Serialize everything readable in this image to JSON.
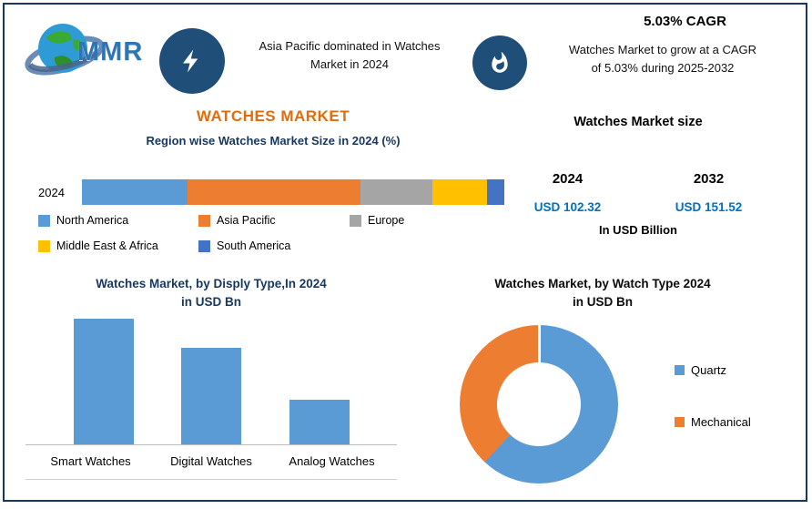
{
  "colors": {
    "border_navy": "#17375E",
    "badge_navy": "#1F4E79",
    "accent_orange": "#E36C09",
    "value_blue": "#0070C0"
  },
  "header": {
    "logo_text": "MMR",
    "dominance_callout": "Asia Pacific dominated in Watches\nMarket in 2024",
    "cagr_headline": "5.03% CAGR",
    "growth_callout": "Watches Market to grow at a CAGR\nof 5.03% during 2025-2032"
  },
  "region_section": {
    "title": "WATCHES MARKET",
    "subtitle": "Region wise Watches Market Size in 2024 (%)",
    "bar_year_label": "2024"
  },
  "market_size": {
    "title": "Watches Market size",
    "year_left": "2024",
    "year_right": "2032",
    "value_left": "USD 102.32",
    "value_right": "USD 151.52",
    "unit": "In USD Billion"
  },
  "display_chart": {
    "title": "Watches Market, by Disply Type,In 2024",
    "subtitle": "in USD Bn"
  },
  "watch_type_chart": {
    "title": "Watches Market, by Watch Type 2024",
    "subtitle": "in USD Bn"
  },
  "chart_data": [
    {
      "type": "bar",
      "subtype": "horizontal-stacked",
      "title": "Region wise Watches Market Size in 2024 (%)",
      "categories": [
        "2024"
      ],
      "unit": "%",
      "legend_position": "below",
      "series": [
        {
          "name": "North America",
          "values": [
            25
          ],
          "color": "#5B9BD5"
        },
        {
          "name": "Asia Pacific",
          "values": [
            41
          ],
          "color": "#ED7D31"
        },
        {
          "name": "Europe",
          "values": [
            17
          ],
          "color": "#A5A5A5"
        },
        {
          "name": "Middle East & Africa",
          "values": [
            13
          ],
          "color": "#FFC000"
        },
        {
          "name": "South America",
          "values": [
            4
          ],
          "color": "#4472C4"
        }
      ]
    },
    {
      "type": "bar",
      "title": "Watches Market, by Disply Type,In 2024 in USD Bn",
      "categories": [
        "Smart Watches",
        "Digital Watches",
        "Analog Watches"
      ],
      "values": [
        48,
        37,
        17
      ],
      "color": "#5B9BD5",
      "ylabel": "USD Bn",
      "grid": false
    },
    {
      "type": "pie",
      "subtype": "donut",
      "title": "Watches Market, by Watch Type 2024 in USD Bn",
      "legend_position": "right",
      "segments": [
        {
          "name": "Quartz",
          "value": 62,
          "color": "#5B9BD5"
        },
        {
          "name": "Mechanical",
          "value": 38,
          "color": "#ED7D31"
        }
      ]
    }
  ]
}
